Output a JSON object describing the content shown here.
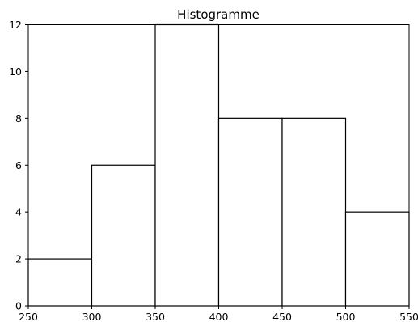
{
  "chart_data": {
    "type": "bar",
    "title": "Histogramme",
    "xlabel": "",
    "ylabel": "",
    "bin_edges": [
      250,
      300,
      350,
      400,
      450,
      500,
      550
    ],
    "values": [
      2,
      6,
      12,
      8,
      8,
      4
    ],
    "xlim": [
      250,
      550
    ],
    "ylim": [
      0,
      12
    ],
    "xticks": [
      250,
      300,
      350,
      400,
      450,
      500,
      550
    ],
    "yticks": [
      0,
      2,
      4,
      6,
      8,
      10,
      12
    ],
    "grid": false,
    "bar_fill": "#ffffff",
    "bar_edge": "#000000"
  }
}
